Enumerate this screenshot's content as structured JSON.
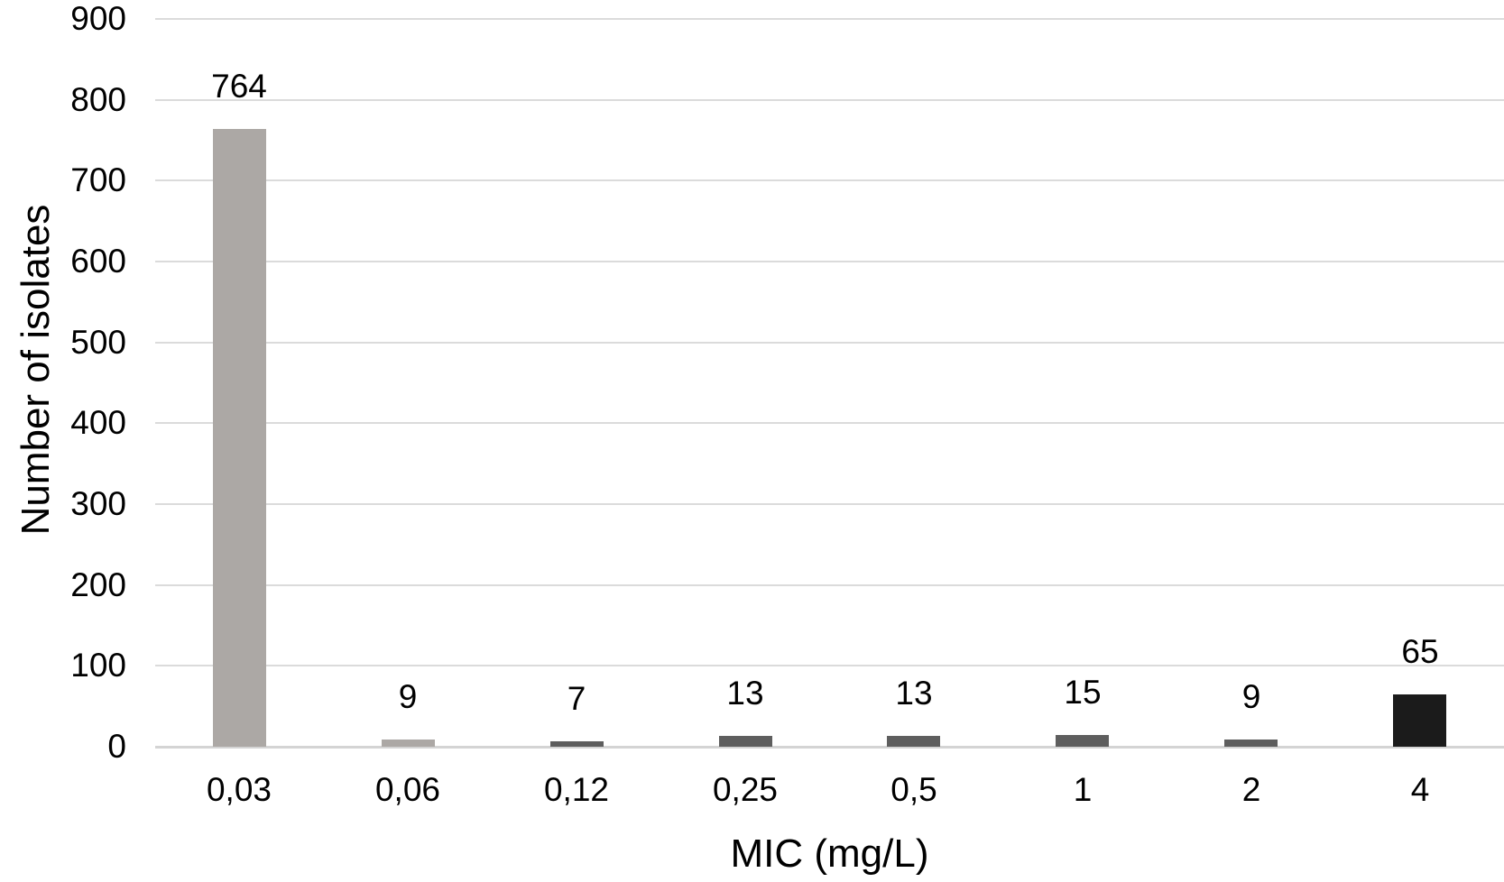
{
  "chart_data": {
    "type": "bar",
    "title": "",
    "xlabel": "MIC (mg/L)",
    "ylabel": "Number of isolates",
    "categories": [
      "0,03",
      "0,06",
      "0,12",
      "0,25",
      "0,5",
      "1",
      "2",
      "4"
    ],
    "values": [
      764,
      9,
      7,
      13,
      13,
      15,
      9,
      65
    ],
    "data_labels": [
      "764",
      "9",
      "7",
      "13",
      "13",
      "15",
      "9",
      "65"
    ],
    "bar_colors": [
      "#ACA8A5",
      "#ACA8A5",
      "#5E5E5E",
      "#5E5E5E",
      "#5E5E5E",
      "#5E5E5E",
      "#5E5E5E",
      "#1B1B1B"
    ],
    "ylim": [
      0,
      900
    ],
    "yticks": [
      0,
      100,
      200,
      300,
      400,
      500,
      600,
      700,
      800,
      900
    ],
    "grid": "horizontal",
    "gridline_color": "#DBDBDB",
    "baseline_color": "#D4D4D4",
    "background_color": "#FFFFFF",
    "legend": "none"
  }
}
